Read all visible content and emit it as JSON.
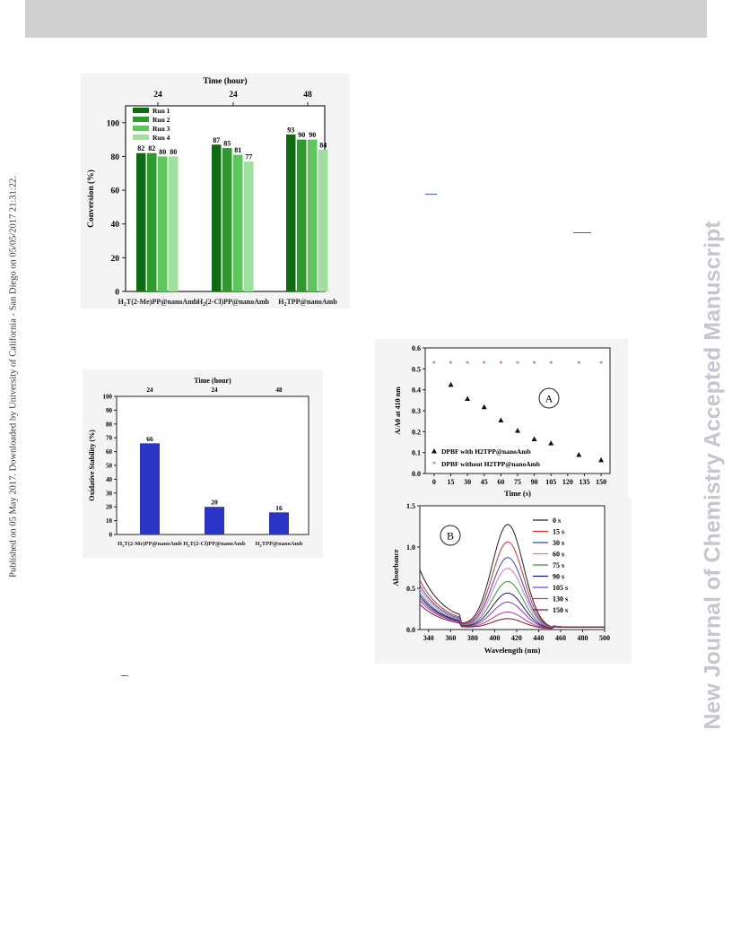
{
  "side_note": "Published on 05 May 2017. Downloaded by University of California - San Diego on 05/05/2017 21:31:22.",
  "watermark": "New Journal of Chemistry Accepted Manuscript",
  "chart_data": [
    {
      "type": "bar",
      "title": "",
      "top_axis_title": "Time (hour)",
      "top_axis_labels": [
        "24",
        "24",
        "48"
      ],
      "xlabel": "",
      "ylabel": "Conversion (%)",
      "ylim": [
        0,
        110
      ],
      "yticks": [
        0,
        20,
        40,
        60,
        80,
        100
      ],
      "categories": [
        "H2T(2-Me)PP@nanoAmb",
        "H2(2-Cl)PP@nanoAmb",
        "H2TPP@nanoAmb"
      ],
      "series": [
        {
          "name": "Run 1",
          "values": [
            82,
            87,
            93
          ],
          "color": "#0e6b12"
        },
        {
          "name": "Run 2",
          "values": [
            82,
            85,
            90
          ],
          "color": "#2e9a2e"
        },
        {
          "name": "Run 3",
          "values": [
            80,
            81,
            90
          ],
          "color": "#5cc85c"
        },
        {
          "name": "Run 4",
          "values": [
            80,
            77,
            84
          ],
          "color": "#9fe09f"
        }
      ],
      "legend": "top-left"
    },
    {
      "type": "bar",
      "title": "",
      "top_axis_title": "Time (hour)",
      "top_axis_labels": [
        "24",
        "24",
        "48"
      ],
      "xlabel": "",
      "ylabel": "Oxidative Stability (%)",
      "ylim": [
        0,
        100
      ],
      "yticks": [
        0,
        10,
        20,
        30,
        40,
        50,
        60,
        70,
        80,
        90,
        100
      ],
      "categories": [
        "H2T(2-Me)PP@nanoAmb",
        "H2T(2-Cl)PP@nanoAmb",
        "H2TPP@nanoAmb"
      ],
      "values": [
        66,
        20,
        16
      ],
      "color": "#2a35c8"
    },
    {
      "type": "scatter",
      "panel_label": "A",
      "xlabel": "Time (s)",
      "ylabel": "A/A0 at 410 nm",
      "xlim": [
        -8,
        158
      ],
      "ylim": [
        0.0,
        0.6
      ],
      "xticks": [
        0,
        15,
        30,
        45,
        60,
        75,
        90,
        105,
        120,
        135,
        150
      ],
      "yticks": [
        0.0,
        0.1,
        0.2,
        0.3,
        0.4,
        0.5,
        0.6
      ],
      "series": [
        {
          "name": "DPBF with H2TPP@nanoAmb",
          "marker": "triangle",
          "color": "#111111",
          "x": [
            15,
            30,
            45,
            60,
            75,
            90,
            105,
            130,
            150
          ],
          "y": [
            0.425,
            0.358,
            0.318,
            0.255,
            0.205,
            0.165,
            0.145,
            0.09,
            0.065
          ]
        },
        {
          "name": "DPBF without H2TPP@nanoAmb",
          "marker": "star",
          "color": "#d21a1a",
          "x": [
            0,
            15,
            30,
            45,
            60,
            75,
            90,
            105,
            130,
            150
          ],
          "y": [
            0.528,
            0.528,
            0.528,
            0.528,
            0.528,
            0.528,
            0.528,
            0.528,
            0.528,
            0.528
          ]
        }
      ],
      "legend": "bottom-left"
    },
    {
      "type": "line",
      "panel_label": "B",
      "xlabel": "Wavelength (nm)",
      "ylabel": "Absorbance",
      "xlim": [
        332,
        500
      ],
      "ylim": [
        0.0,
        1.5
      ],
      "xticks": [
        340,
        360,
        380,
        400,
        420,
        440,
        460,
        480,
        500
      ],
      "yticks": [
        0.0,
        0.5,
        1.0,
        1.5
      ],
      "series": [
        {
          "name": "0 s",
          "peak": 1.26,
          "base": 0.46,
          "color": "#222222"
        },
        {
          "name": "15 s",
          "peak": 1.05,
          "base": 0.38,
          "color": "#d63030"
        },
        {
          "name": "30 s",
          "peak": 0.86,
          "base": 0.34,
          "color": "#3048c8"
        },
        {
          "name": "60 s",
          "peak": 0.73,
          "base": 0.31,
          "color": "#e070c0"
        },
        {
          "name": "75 s",
          "peak": 0.57,
          "base": 0.28,
          "color": "#2a9a3a"
        },
        {
          "name": "90 s",
          "peak": 0.43,
          "base": 0.26,
          "color": "#1a1a7a"
        },
        {
          "name": "105 s",
          "peak": 0.32,
          "base": 0.24,
          "color": "#8a3ad0"
        },
        {
          "name": "130 s",
          "peak": 0.2,
          "base": 0.22,
          "color": "#b03a9a"
        },
        {
          "name": "150 s",
          "peak": 0.12,
          "base": 0.19,
          "color": "#7a1a1a"
        }
      ],
      "legend": "top-right"
    }
  ]
}
